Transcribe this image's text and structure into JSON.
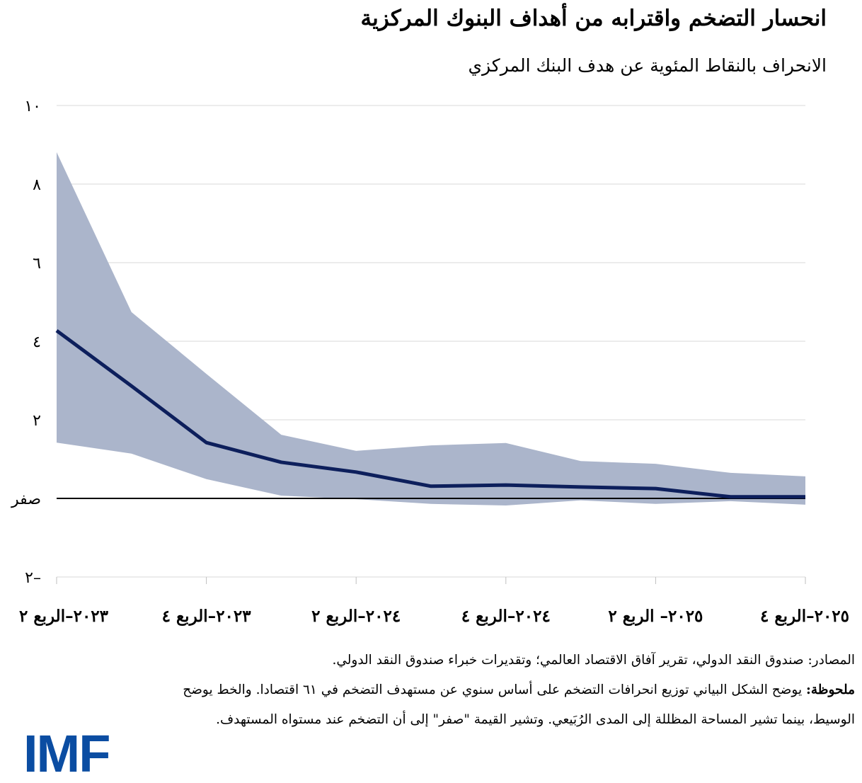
{
  "header": {
    "title": "انحسار التضخم واقترابه من أهداف البنوك المركزية",
    "subtitle": "الانحراف بالنقاط المئوية عن هدف البنك المركزي"
  },
  "chart_data": {
    "type": "area",
    "title": "انحسار التضخم واقترابه من أهداف البنوك المركزية",
    "ylabel": "الانحراف بالنقاط المئوية عن هدف البنك المركزي",
    "ylim": [
      -2,
      10
    ],
    "yticks": [
      10,
      8,
      6,
      4,
      2,
      0,
      -2
    ],
    "ytick_labels": [
      "١٠",
      "٨",
      "٦",
      "٤",
      "٢",
      "صفر",
      "٢–"
    ],
    "grid": true,
    "x": [
      "2023Q2",
      "2023Q3",
      "2023Q4",
      "2024Q1",
      "2024Q2",
      "2024Q3",
      "2024Q4",
      "2025Q1",
      "2025Q2",
      "2025Q3",
      "2025Q4"
    ],
    "xtick_labels": [
      "٢٠٢٣–الربع ٢",
      "٢٠٢٣–الربع ٤",
      "٢٠٢٤–الربع ٢",
      "٢٠٢٤–الربع ٤",
      "٢٠٢٥– الربع ٢",
      "٢٠٢٥–الربع ٤"
    ],
    "series": [
      {
        "role": "median",
        "color": "#0d1f5c",
        "values": [
          4.27,
          2.86,
          1.42,
          0.92,
          0.67,
          0.31,
          0.34,
          0.29,
          0.25,
          0.04,
          0.04
        ]
      },
      {
        "role": "interquartile-upper",
        "color": "#abb5cb",
        "values": [
          8.81,
          4.74,
          3.17,
          1.62,
          1.21,
          1.35,
          1.41,
          0.95,
          0.88,
          0.65,
          0.56
        ]
      },
      {
        "role": "interquartile-lower",
        "color": "#abb5cb",
        "values": [
          1.42,
          1.14,
          0.49,
          0.07,
          -0.02,
          -0.14,
          -0.18,
          -0.05,
          -0.14,
          -0.07,
          -0.16
        ]
      }
    ]
  },
  "notes": {
    "sources": "المصادر: صندوق النقد الدولي، تقرير آفاق الاقتصاد العالمي؛ وتقديرات خبراء صندوق النقد الدولي.",
    "note_label": "ملحوظة:",
    "note_text": " يوضح الشكل البياني توزيع انحرافات التضخم على أساس سنوي عن مستهدف التضخم في ٦١ اقتصادا. والخط يوضح الوسيط، بينما تشير المساحة المظللة إلى المدى الرُبَيعي. وتشير القيمة \"صفر\" إلى أن التضخم عند مستواه المستهدف."
  },
  "logo": {
    "text": "IMF",
    "color": "#0b4da2"
  }
}
